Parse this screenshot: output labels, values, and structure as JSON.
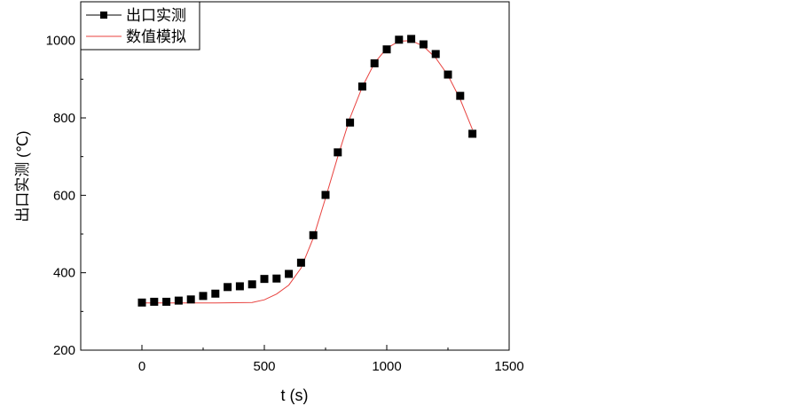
{
  "chart_data": {
    "type": "scatter",
    "title": "",
    "xlabel": "t (s)",
    "ylabel": "出口实测 (℃)",
    "xlim": [
      -250,
      1500
    ],
    "ylim": [
      200,
      1100
    ],
    "x_ticks": [
      0,
      500,
      1000,
      1500
    ],
    "y_ticks": [
      200,
      400,
      600,
      800,
      1000
    ],
    "grid": false,
    "legend_position": "top-left",
    "series": [
      {
        "name": "出口实测",
        "style": "markers",
        "marker": "square",
        "color": "#000000",
        "points": [
          [
            0,
            323
          ],
          [
            50,
            325
          ],
          [
            100,
            325
          ],
          [
            150,
            328
          ],
          [
            200,
            331
          ],
          [
            250,
            340
          ],
          [
            300,
            346
          ],
          [
            350,
            363
          ],
          [
            400,
            365
          ],
          [
            450,
            370
          ],
          [
            500,
            384
          ],
          [
            550,
            385
          ],
          [
            600,
            397
          ],
          [
            650,
            426
          ],
          [
            700,
            497
          ],
          [
            750,
            601
          ],
          [
            800,
            711
          ],
          [
            850,
            788
          ],
          [
            900,
            881
          ],
          [
            950,
            941
          ],
          [
            1000,
            977
          ],
          [
            1050,
            1002
          ],
          [
            1100,
            1004
          ],
          [
            1150,
            990
          ],
          [
            1200,
            965
          ],
          [
            1250,
            912
          ],
          [
            1300,
            857
          ],
          [
            1350,
            759
          ]
        ]
      },
      {
        "name": "数值模拟",
        "style": "line",
        "color": "#e8423f",
        "points": [
          [
            0,
            322
          ],
          [
            100,
            322
          ],
          [
            200,
            322
          ],
          [
            300,
            322
          ],
          [
            450,
            323
          ],
          [
            500,
            330
          ],
          [
            550,
            345
          ],
          [
            600,
            368
          ],
          [
            650,
            412
          ],
          [
            700,
            490
          ],
          [
            750,
            593
          ],
          [
            800,
            700
          ],
          [
            850,
            800
          ],
          [
            900,
            880
          ],
          [
            950,
            942
          ],
          [
            1000,
            980
          ],
          [
            1050,
            998
          ],
          [
            1100,
            1000
          ],
          [
            1150,
            985
          ],
          [
            1200,
            955
          ],
          [
            1250,
            910
          ],
          [
            1300,
            848
          ],
          [
            1350,
            770
          ]
        ]
      }
    ]
  }
}
